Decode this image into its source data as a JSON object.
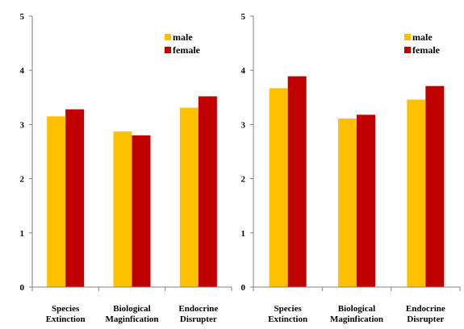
{
  "colors": {
    "male": "#FFC000",
    "female": "#C00000",
    "axis": "#808080",
    "text": "#000000"
  },
  "chart_data": [
    {
      "type": "bar",
      "categories": [
        "Species Extinction",
        "Biological Magnification",
        "Endocrine Disrupter"
      ],
      "category_lines": [
        [
          "Species",
          "Extinction"
        ],
        [
          "Biological",
          "Maginfication"
        ],
        [
          "Endocrine",
          "Disrupter"
        ]
      ],
      "series": [
        {
          "name": "male",
          "values": [
            3.15,
            2.87,
            3.31
          ]
        },
        {
          "name": "female",
          "values": [
            3.28,
            2.8,
            3.52
          ]
        }
      ],
      "ylim": [
        0,
        5
      ],
      "yticks": [
        "0",
        "1",
        "2",
        "3",
        "4",
        "5"
      ],
      "grid": false,
      "legend": "top-right"
    },
    {
      "type": "bar",
      "categories": [
        "Species Extinction",
        "Biological Magnification",
        "Endocrine Disrupter"
      ],
      "category_lines": [
        [
          "Species",
          "Extinction"
        ],
        [
          "Biological",
          "Maginfication"
        ],
        [
          "Endocrine",
          "Disrupter"
        ]
      ],
      "series": [
        {
          "name": "male",
          "values": [
            3.67,
            3.11,
            3.46
          ]
        },
        {
          "name": "female",
          "values": [
            3.89,
            3.18,
            3.71
          ]
        }
      ],
      "ylim": [
        0,
        5
      ],
      "yticks": [
        "0",
        "1",
        "2",
        "3",
        "4",
        "5"
      ],
      "grid": false,
      "legend": "top-right"
    }
  ]
}
